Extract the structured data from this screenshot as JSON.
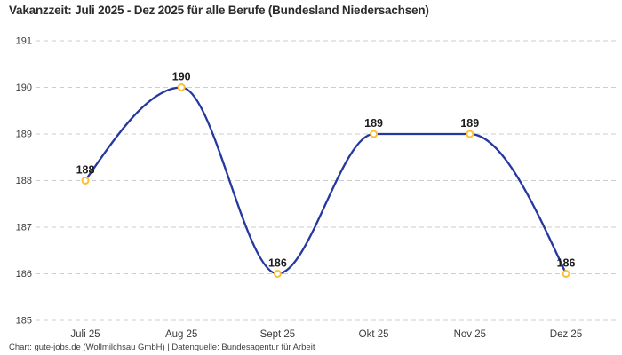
{
  "header": {
    "title": "Vakanzzeit: Juli 2025 - Dez 2025 für alle Berufe (Bundesland Niedersachsen)"
  },
  "footer": {
    "text": "Chart: gute-jobs.de (Wollmilchsau GmbH) | Datenquelle: Bundesagentur für Arbeit"
  },
  "chart_data": {
    "type": "line",
    "title": "Vakanzzeit: Juli 2025 - Dez 2025 für alle Berufe (Bundesland Niedersachsen)",
    "categories": [
      "Juli 25",
      "Aug 25",
      "Sept 25",
      "Okt 25",
      "Nov 25",
      "Dez 25"
    ],
    "values": [
      188,
      190,
      186,
      189,
      189,
      186
    ],
    "point_labels": [
      "188",
      "190",
      "186",
      "189",
      "189",
      "186"
    ],
    "xlabel": "",
    "ylabel": "",
    "ylim": [
      185,
      191
    ],
    "yticks": [
      185,
      186,
      187,
      188,
      189,
      190,
      191
    ],
    "grid": "horizontal-dashed",
    "legend": "none",
    "curve": "monotone",
    "colors": {
      "line": "#24389f",
      "marker_stroke": "#fbbf32",
      "marker_fill": "#ffffff",
      "gridline": "#cdcdcd",
      "tick_text": "#3b3b3b",
      "point_label_text": "#1c1c1c",
      "title_text": "#2b2b2b",
      "footer_text": "#3d3d3d"
    }
  }
}
